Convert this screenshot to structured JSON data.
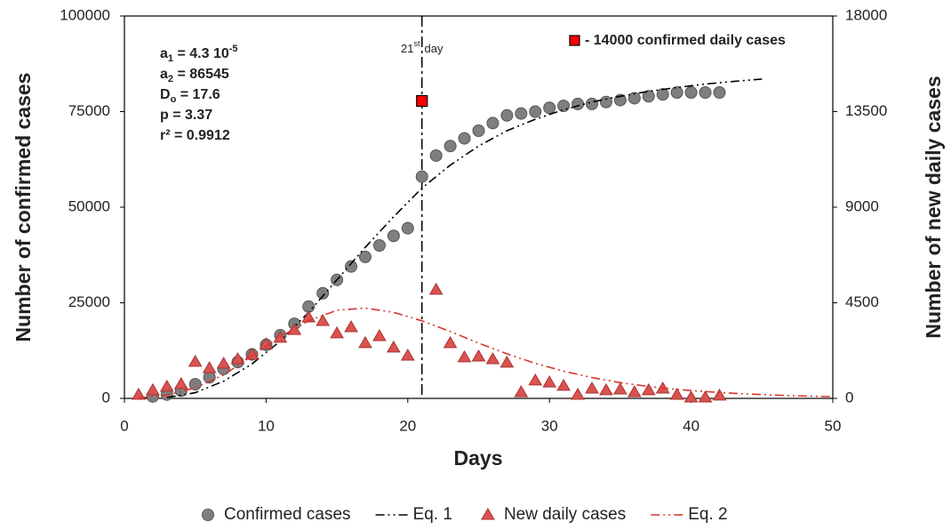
{
  "chart_data": {
    "type": "scatter",
    "x_label": "Days",
    "y_label": "Number of confirmed cases",
    "y2_label": "Number of new daily cases",
    "xlim": [
      0,
      50
    ],
    "xticks": [
      0,
      10,
      20,
      30,
      40,
      50
    ],
    "ylim": [
      0,
      100000
    ],
    "yticks": [
      0,
      25000,
      50000,
      75000,
      100000
    ],
    "y2lim": [
      0,
      18000
    ],
    "y2ticks": [
      0,
      4500,
      9000,
      13500,
      18000
    ],
    "series": [
      {
        "name": "Confirmed cases",
        "style": "scatter",
        "marker": "circle",
        "color": "#7f7f7f",
        "x": [
          2,
          3,
          4,
          5,
          6,
          7,
          8,
          9,
          10,
          11,
          12,
          13,
          14,
          15,
          16,
          17,
          18,
          19,
          20,
          21,
          22,
          23,
          24,
          25,
          26,
          27,
          28,
          29,
          30,
          31,
          32,
          33,
          34,
          35,
          36,
          37,
          38,
          39,
          40,
          41,
          42
        ],
        "values": [
          500,
          1000,
          2000,
          3700,
          5500,
          7700,
          9500,
          11500,
          14000,
          16500,
          19500,
          24000,
          27500,
          31000,
          34500,
          37000,
          40000,
          42500,
          44500,
          58000,
          63500,
          66000,
          68000,
          70000,
          72000,
          74000,
          74500,
          75000,
          76000,
          76500,
          77000,
          77000,
          77500,
          78000,
          78500,
          79000,
          79500,
          80000,
          80000,
          80000,
          80000
        ]
      },
      {
        "name": "Eq. 1",
        "style": "line",
        "dash": "dash-dot-dot",
        "color": "#000000",
        "x": [
          3,
          5,
          7,
          9,
          11,
          13,
          15,
          17,
          19,
          21,
          23,
          25,
          27,
          29,
          31,
          33,
          35,
          37,
          39,
          41,
          43,
          45
        ],
        "values": [
          200,
          1500,
          4500,
          9000,
          15000,
          22500,
          31000,
          39500,
          47500,
          55000,
          61000,
          66000,
          70000,
          73000,
          75500,
          77500,
          79000,
          80300,
          81300,
          82200,
          82900,
          83500
        ]
      },
      {
        "name": "New daily cases",
        "style": "scatter",
        "marker": "triangle",
        "color": "#d9534f",
        "axis": "y2",
        "x": [
          1,
          2,
          3,
          4,
          5,
          6,
          7,
          8,
          9,
          10,
          11,
          12,
          13,
          14,
          15,
          16,
          17,
          18,
          19,
          20,
          22,
          23,
          24,
          25,
          26,
          27,
          28,
          29,
          30,
          31,
          32,
          33,
          34,
          35,
          36,
          37,
          38,
          39,
          40,
          41,
          42
        ],
        "values": [
          170,
          380,
          550,
          670,
          1720,
          1420,
          1630,
          1840,
          2050,
          2550,
          2850,
          3220,
          3810,
          3640,
          3060,
          3350,
          2600,
          2930,
          2390,
          2010,
          5110,
          2600,
          1930,
          1970,
          1840,
          1680,
          290,
          840,
          750,
          590,
          170,
          460,
          380,
          420,
          290,
          380,
          460,
          170,
          40,
          40,
          130
        ]
      },
      {
        "name": "Eq. 2",
        "style": "line",
        "dash": "dash-dot-dot",
        "color": "#d9342b",
        "axis": "y2",
        "x": [
          1,
          3,
          5,
          7,
          9,
          11,
          13,
          15,
          17,
          19,
          21,
          23,
          25,
          27,
          29,
          31,
          33,
          35,
          37,
          39,
          41,
          43,
          45,
          47,
          50
        ],
        "values": [
          20,
          150,
          500,
          1100,
          2000,
          2900,
          3650,
          4150,
          4250,
          4050,
          3650,
          3150,
          2600,
          2100,
          1650,
          1280,
          980,
          740,
          560,
          420,
          320,
          240,
          180,
          130,
          80
        ]
      }
    ],
    "highlight": {
      "x": 21,
      "value": 14000,
      "axis": "y2",
      "color": "#ff0000",
      "label": "- 14000 confirmed daily cases"
    },
    "vline": {
      "value": 21,
      "label": "21",
      "label_sup": "st",
      "label_post": "day"
    },
    "annotations": [
      {
        "base": "a",
        "sub": "1",
        "text": " = 4.3 10",
        "sup": "-5"
      },
      {
        "base": "a",
        "sub": "2",
        "text": " = 86545"
      },
      {
        "base": "D",
        "sub": "o",
        "text": " = 17.6"
      },
      {
        "base": "p = 3.37"
      },
      {
        "base": "r² = 0.9912"
      }
    ],
    "legend": "bottom"
  }
}
